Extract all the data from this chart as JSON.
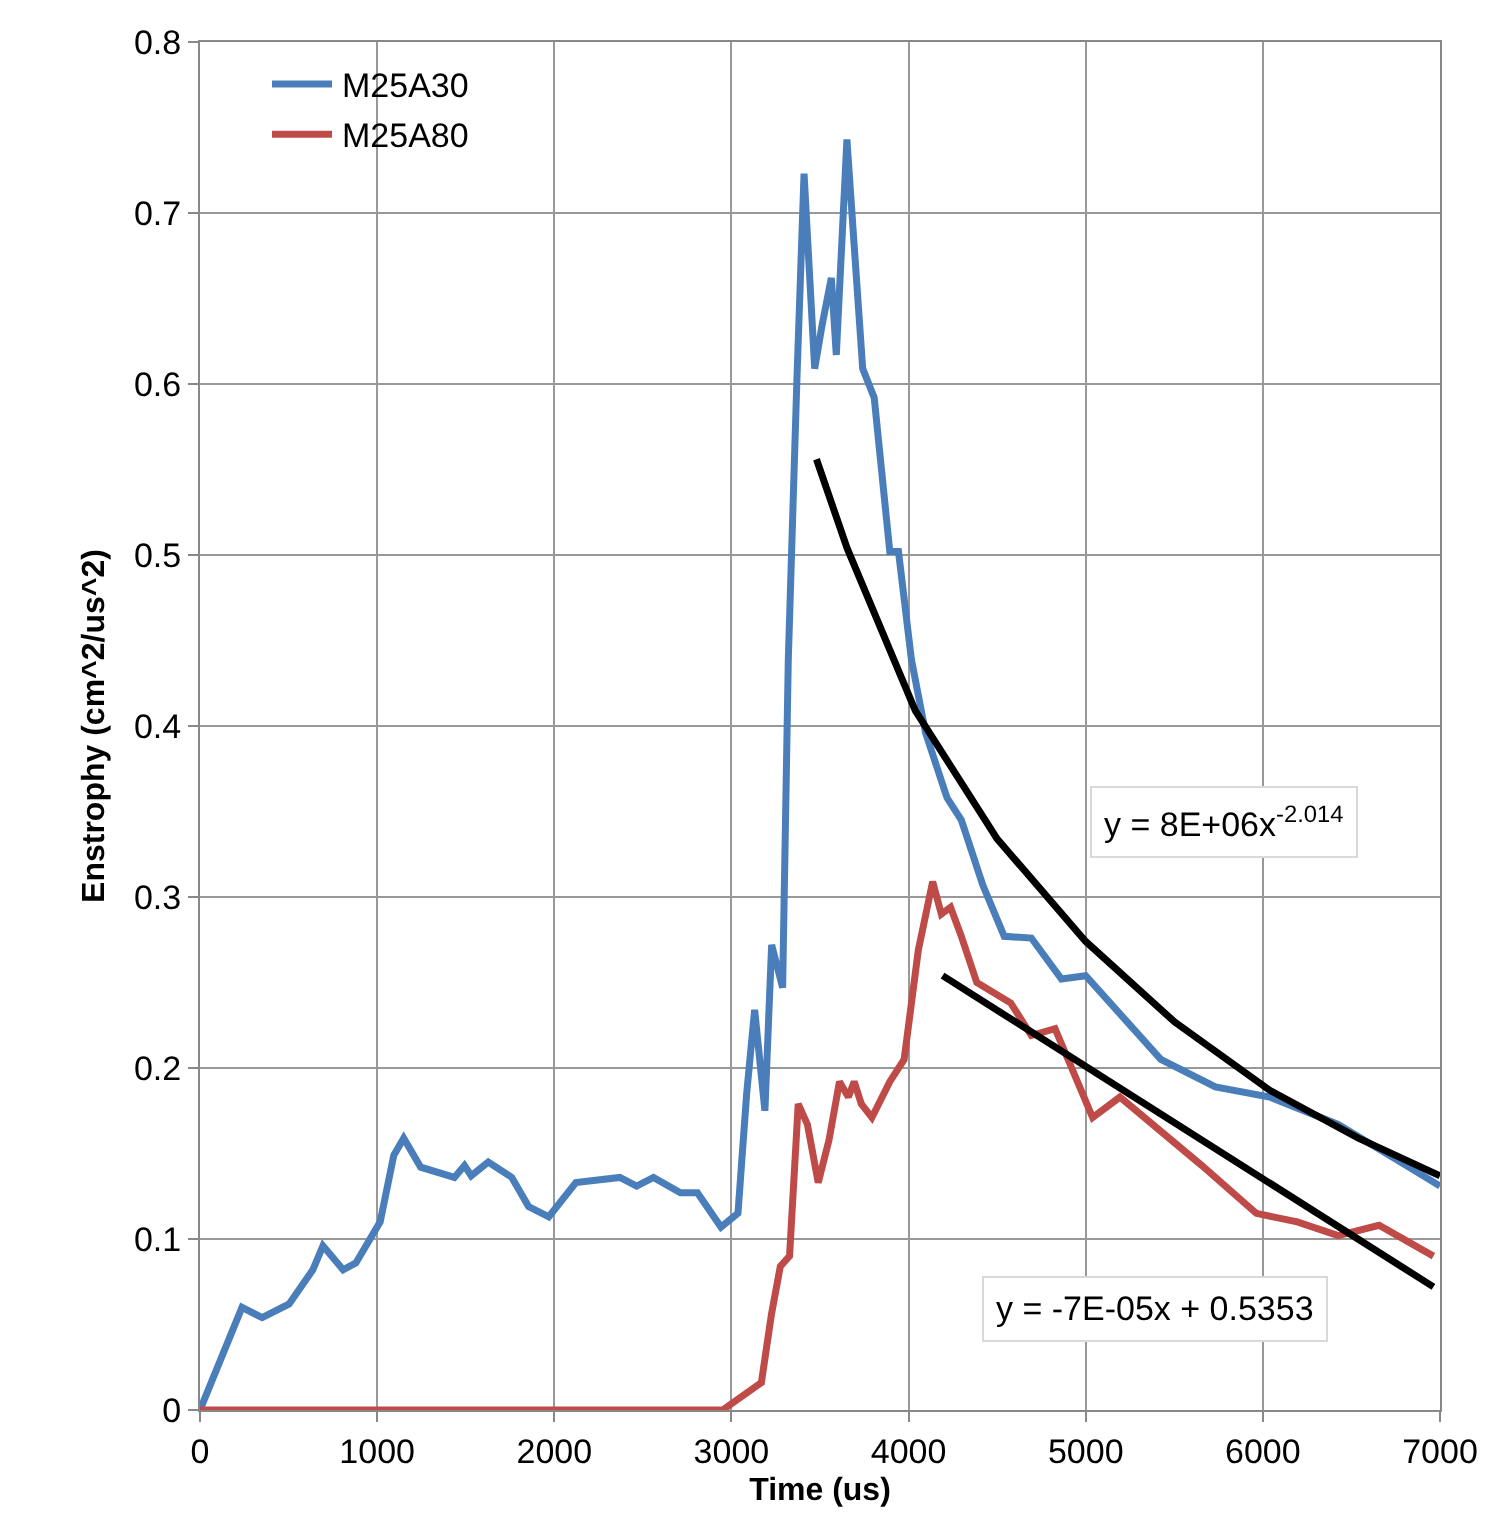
{
  "chart_data": {
    "type": "line",
    "xlabel": "Time (us)",
    "ylabel": "Enstrophy (cm^2/us^2)",
    "xlim": [
      0,
      7000
    ],
    "xticks": [
      0,
      1000,
      2000,
      3000,
      4000,
      5000,
      6000,
      7000
    ],
    "ylim": [
      0,
      0.8
    ],
    "yticks": [
      0,
      0.1,
      0.2,
      0.3,
      0.4,
      0.5,
      0.6,
      0.7,
      0.8
    ],
    "grid": true,
    "legend": "top left",
    "marker": "none",
    "line_style": "solid",
    "series": [
      {
        "name": "M25A30",
        "color": "#4a7ebb",
        "x": [
          0,
          237,
          351,
          503,
          637,
          694,
          808,
          880,
          1017,
          1094,
          1150,
          1246,
          1436,
          1493,
          1531,
          1627,
          1760,
          1855,
          1969,
          2122,
          2370,
          2465,
          2560,
          2712,
          2808,
          2941,
          3037,
          3086,
          3131,
          3189,
          3227,
          3289,
          3321,
          3370,
          3410,
          3470,
          3511,
          3564,
          3592,
          3652,
          3693,
          3741,
          3806,
          3894,
          3943,
          4016,
          4096,
          4217,
          4298,
          4419,
          4540,
          4693,
          4863,
          5000,
          5424,
          5732,
          6039,
          6425,
          6810,
          7000
        ],
        "values": [
          0,
          0.06,
          0.054,
          0.062,
          0.082,
          0.096,
          0.082,
          0.086,
          0.11,
          0.149,
          0.159,
          0.142,
          0.136,
          0.143,
          0.137,
          0.145,
          0.136,
          0.119,
          0.113,
          0.133,
          0.136,
          0.131,
          0.136,
          0.127,
          0.127,
          0.107,
          0.115,
          0.185,
          0.234,
          0.175,
          0.272,
          0.247,
          0.439,
          0.604,
          0.723,
          0.609,
          0.634,
          0.662,
          0.617,
          0.743,
          0.681,
          0.609,
          0.592,
          0.502,
          0.502,
          0.439,
          0.396,
          0.358,
          0.345,
          0.307,
          0.277,
          0.276,
          0.252,
          0.254,
          0.205,
          0.189,
          0.183,
          0.167,
          0.143,
          0.131
        ]
      },
      {
        "name": "M25A80",
        "color": "#be4b48",
        "x": [
          0,
          1000,
          2000,
          2950,
          3169,
          3226,
          3276,
          3328,
          3377,
          3429,
          3490,
          3551,
          3610,
          3660,
          3693,
          3733,
          3793,
          3894,
          3975,
          4055,
          4136,
          4185,
          4237,
          4298,
          4385,
          4577,
          4693,
          4827,
          5039,
          5193,
          5424,
          5655,
          5963,
          6194,
          6425,
          6656,
          6963
        ],
        "values": [
          0,
          0,
          0,
          0,
          0.016,
          0.056,
          0.084,
          0.09,
          0.179,
          0.167,
          0.133,
          0.158,
          0.192,
          0.183,
          0.192,
          0.179,
          0.171,
          0.192,
          0.205,
          0.269,
          0.309,
          0.29,
          0.294,
          0.277,
          0.25,
          0.238,
          0.219,
          0.223,
          0.171,
          0.183,
          0.163,
          0.143,
          0.115,
          0.11,
          0.102,
          0.108,
          0.09
        ]
      },
      {
        "color": "#000000",
        "x": [
          3480,
          3653,
          4038,
          4500,
          5000,
          5501,
          6039,
          6539,
          7000
        ],
        "values": [
          0.556,
          0.504,
          0.409,
          0.334,
          0.274,
          0.227,
          0.187,
          0.159,
          0.137
        ]
      },
      {
        "color": "#000000",
        "x": [
          4192,
          6963
        ],
        "values": [
          0.254,
          0.072
        ]
      }
    ],
    "annotations": [
      "y = 8E+06x$^{-2.014}$",
      "y = -7E-05x + 0.5353"
    ]
  }
}
